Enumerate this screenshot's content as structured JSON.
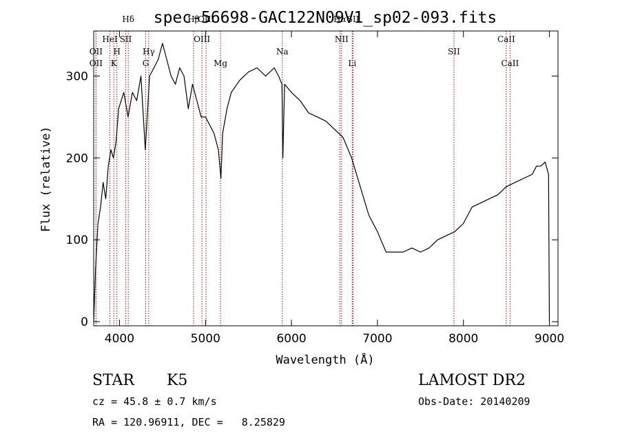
{
  "chart_data": {
    "type": "line",
    "title": "spec-56698-GAC122N09V1_sp02-093.fits",
    "xlabel": "Wavelength (Å)",
    "ylabel": "Flux (relative)",
    "xlim": [
      3700,
      9100
    ],
    "ylim": [
      -5,
      355
    ],
    "x_ticks": [
      4000,
      5000,
      6000,
      7000,
      8000,
      9000
    ],
    "y_ticks": [
      0,
      100,
      200,
      300
    ],
    "grid": false,
    "series": [
      {
        "color": "#000000",
        "x": [
          3700,
          3720,
          3750,
          3780,
          3810,
          3840,
          3870,
          3900,
          3930,
          3960,
          3990,
          4020,
          4050,
          4100,
          4150,
          4200,
          4250,
          4300,
          4350,
          4400,
          4450,
          4500,
          4550,
          4600,
          4650,
          4700,
          4750,
          4800,
          4850,
          4900,
          4950,
          5000,
          5050,
          5100,
          5150,
          5180,
          5200,
          5250,
          5300,
          5400,
          5500,
          5600,
          5700,
          5800,
          5850,
          5890,
          5900,
          5920,
          6000,
          6100,
          6200,
          6300,
          6400,
          6500,
          6600,
          6700,
          6800,
          6900,
          7000,
          7100,
          7200,
          7300,
          7400,
          7500,
          7600,
          7700,
          7800,
          7900,
          8000,
          8100,
          8200,
          8300,
          8400,
          8500,
          8600,
          8700,
          8800,
          8850,
          8900,
          8950,
          8990,
          9000
        ],
        "y": [
          0,
          60,
          120,
          140,
          170,
          150,
          190,
          210,
          200,
          220,
          260,
          270,
          280,
          250,
          280,
          270,
          300,
          210,
          300,
          310,
          320,
          340,
          320,
          300,
          290,
          310,
          300,
          260,
          290,
          270,
          250,
          250,
          240,
          230,
          210,
          175,
          230,
          260,
          280,
          295,
          305,
          310,
          300,
          310,
          300,
          290,
          200,
          290,
          280,
          270,
          255,
          250,
          245,
          235,
          225,
          200,
          165,
          130,
          110,
          85,
          85,
          85,
          90,
          85,
          90,
          100,
          105,
          110,
          120,
          140,
          145,
          150,
          155,
          165,
          170,
          175,
          180,
          190,
          190,
          195,
          180,
          0
        ]
      }
    ],
    "line_markers": [
      {
        "wavelength": 3727,
        "label": "OII",
        "row": 2
      },
      {
        "wavelength": 3727,
        "label": "OII",
        "row": 3
      },
      {
        "wavelength": 3889,
        "label": "HeI",
        "row": 1
      },
      {
        "wavelength": 3934,
        "label": "K",
        "row": 3
      },
      {
        "wavelength": 3970,
        "label": "H",
        "row": 2
      },
      {
        "wavelength": 4072,
        "label": "SII",
        "row": 1
      },
      {
        "wavelength": 4102,
        "label": "Hδ",
        "row": 0
      },
      {
        "wavelength": 4305,
        "label": "G",
        "row": 3
      },
      {
        "wavelength": 4340,
        "label": "Hγ",
        "row": 2
      },
      {
        "wavelength": 4861,
        "label": "Hβ",
        "row": 0
      },
      {
        "wavelength": 4959,
        "label": "OIII",
        "row": 1
      },
      {
        "wavelength": 5007,
        "label": "OIII",
        "row": 0
      },
      {
        "wavelength": 5175,
        "label": "Mg",
        "row": 3
      },
      {
        "wavelength": 5894,
        "label": "Na",
        "row": 2
      },
      {
        "wavelength": 6563,
        "label": "Hα",
        "row": 0
      },
      {
        "wavelength": 6583,
        "label": "NII",
        "row": 1
      },
      {
        "wavelength": 6707,
        "label": "Li",
        "row": 3
      },
      {
        "wavelength": 6717,
        "label": "SII",
        "row": 0
      },
      {
        "wavelength": 7890,
        "label": "SII",
        "row": 2
      },
      {
        "wavelength": 8498,
        "label": "CaII",
        "row": 1
      },
      {
        "wavelength": 8542,
        "label": "CaII",
        "row": 3
      }
    ]
  },
  "info": {
    "object_class": "STAR",
    "subclass": "K5",
    "survey": "LAMOST DR2",
    "redshift_line": "cz = 45.8 ± 0.7 km/s",
    "obs_date": "Obs-Date: 20140209",
    "coordinates": "RA = 120.96911, DEC =   8.25829"
  }
}
